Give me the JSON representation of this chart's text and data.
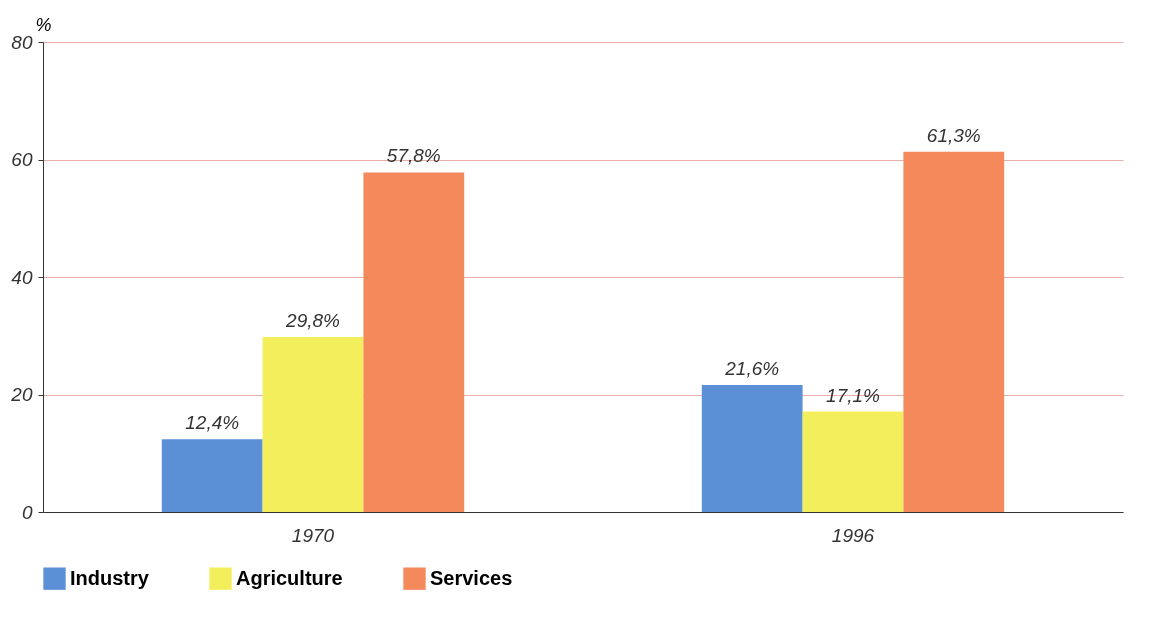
{
  "chart_data": {
    "type": "bar",
    "ylabel": "%",
    "categories": [
      "1970",
      "1996"
    ],
    "series": [
      {
        "name": "Industry",
        "color": "#5b8fd6",
        "values": [
          12.4,
          21.6
        ],
        "value_labels": [
          "12,4%",
          "21,6%"
        ]
      },
      {
        "name": "Agriculture",
        "color": "#f3ef5c",
        "values": [
          29.8,
          17.1
        ],
        "value_labels": [
          "29,8%",
          "17,1%"
        ]
      },
      {
        "name": "Services",
        "color": "#f48a5c",
        "values": [
          57.8,
          61.3
        ],
        "value_labels": [
          "57,8%",
          "61,3%"
        ]
      }
    ],
    "ylim": [
      0,
      80
    ],
    "yticks": [
      0,
      20,
      40,
      60,
      80
    ],
    "grid": "y",
    "legend": "bottom left"
  }
}
